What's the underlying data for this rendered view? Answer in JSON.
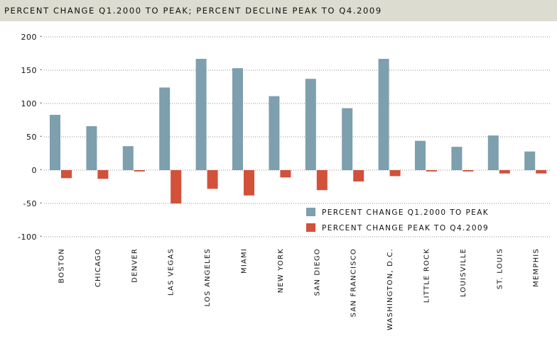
{
  "header": {
    "title": "PERCENT CHANGE Q1.2000 TO PEAK; PERCENT DECLINE PEAK TO Q4.2009"
  },
  "chart_data": {
    "type": "bar",
    "title": "PERCENT CHANGE Q1.2000 TO PEAK; PERCENT DECLINE PEAK TO Q4.2009",
    "xlabel": "",
    "ylabel": "",
    "ylim": [
      -100,
      200
    ],
    "yticks": [
      "200",
      "150",
      "100",
      "50",
      "0",
      "-50",
      "-100"
    ],
    "categories": [
      "BOSTON",
      "CHICAGO",
      "DENVER",
      "LAS VEGAS",
      "LOS ANGELES",
      "MIAMI",
      "NEW YORK",
      "SAN DIEGO",
      "SAN FRANCISCO",
      "WASHINGTON, D.C.",
      "LITTLE ROCK",
      "LOUISVILLE",
      "ST. LOUIS",
      "MEMPHIS"
    ],
    "series": [
      {
        "name": "PERCENT CHANGE Q1.2000 TO PEAK",
        "color": "#7d9fae",
        "values": [
          83,
          66,
          36,
          124,
          167,
          153,
          111,
          137,
          93,
          167,
          44,
          35,
          52,
          28
        ]
      },
      {
        "name": "PERCENT CHANGE PEAK TO Q4.2009",
        "color": "#d3503a",
        "values": [
          -12,
          -13,
          -2,
          -50,
          -28,
          -38,
          -11,
          -30,
          -17,
          -9,
          -2,
          -2,
          -5,
          -5
        ]
      }
    ],
    "grid": true,
    "grid_style": "dotted horizontal",
    "legend_position": "lower-right"
  }
}
